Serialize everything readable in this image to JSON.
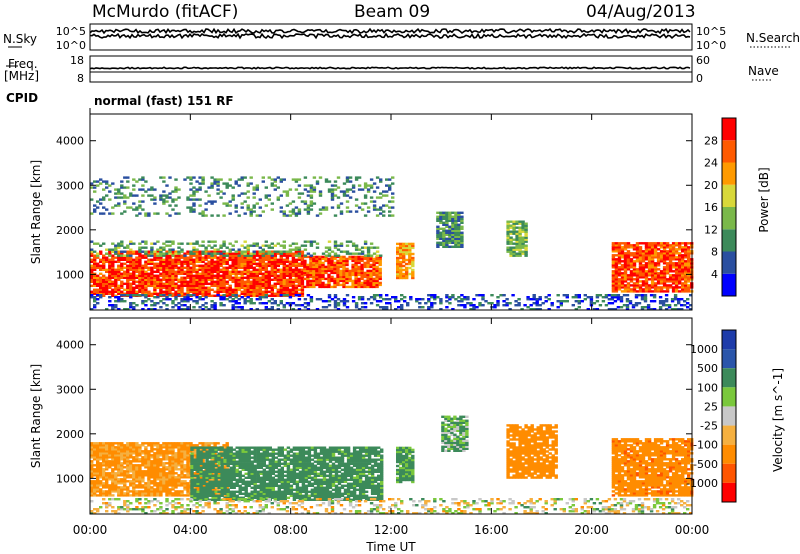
{
  "header": {
    "station": "McMurdo (fitACF)",
    "beam": "Beam 09",
    "date": "04/Aug/2013"
  },
  "params_panel": {
    "nsky_label": "N.Sky",
    "nsearch_label": "N.Search",
    "freq_label_line1": "Freq.",
    "freq_label_line2": "[MHz]",
    "nave_label": "Nave",
    "cpid_label": "CPID",
    "cpid_value": "normal (fast) 151 RF",
    "noise_ticks": [
      "10^5",
      "10^0"
    ],
    "freq_ticks": [
      "18",
      "8"
    ],
    "nave_ticks": [
      "60",
      "0"
    ]
  },
  "colors": {
    "power_scale": [
      "#0000ff",
      "#2a4fa0",
      "#3c8a5a",
      "#7ab84a",
      "#d8d83a",
      "#ff9a00",
      "#ff5a00",
      "#ff0000"
    ],
    "velocity_scale": [
      "#ff0000",
      "#ff5500",
      "#ff8c00",
      "#f5b040",
      "#c8c8c8",
      "#7ac83c",
      "#3c8a5a",
      "#2a55aa",
      "#1e3caa"
    ]
  },
  "chart_data": [
    {
      "type": "heatmap",
      "name": "power",
      "xlabel": "Time UT",
      "ylabel": "Slant Range [km]",
      "x_ticks": [
        "00:00",
        "04:00",
        "08:00",
        "12:00",
        "16:00",
        "20:00",
        "00:00"
      ],
      "x_range_hours": [
        0,
        24
      ],
      "y_ticks": [
        1000,
        2000,
        3000,
        4000
      ],
      "ylim": [
        200,
        4600
      ],
      "colorbar_label": "Power [dB]",
      "colorbar_ticks": [
        4,
        8,
        12,
        16,
        20,
        24,
        28
      ],
      "colorbar_range": [
        0,
        32
      ],
      "regions": [
        {
          "t0": 0.0,
          "t1": 8.5,
          "r0": 500,
          "r1": 1500,
          "level": 28
        },
        {
          "t0": 8.5,
          "t1": 11.6,
          "r0": 700,
          "r1": 1400,
          "level": 26
        },
        {
          "t0": 0.0,
          "t1": 11.6,
          "r0": 1400,
          "r1": 1750,
          "level": 12
        },
        {
          "t0": 12.2,
          "t1": 12.8,
          "r0": 900,
          "r1": 1700,
          "level": 22
        },
        {
          "t0": 13.8,
          "t1": 14.8,
          "r0": 1600,
          "r1": 2400,
          "level": 10
        },
        {
          "t0": 16.6,
          "t1": 17.4,
          "r0": 1400,
          "r1": 2200,
          "level": 14
        },
        {
          "t0": 20.8,
          "t1": 24.0,
          "r0": 600,
          "r1": 1700,
          "level": 27
        },
        {
          "t0": 0.0,
          "t1": 12.0,
          "r0": 2300,
          "r1": 3200,
          "level": 10
        },
        {
          "t0": 0.0,
          "t1": 24.0,
          "r0": 200,
          "r1": 550,
          "level": 6
        }
      ]
    },
    {
      "type": "heatmap",
      "name": "velocity",
      "xlabel": "Time UT",
      "ylabel": "Slant Range [km]",
      "x_ticks": [
        "00:00",
        "04:00",
        "08:00",
        "12:00",
        "16:00",
        "20:00",
        "00:00"
      ],
      "x_range_hours": [
        0,
        24
      ],
      "y_ticks": [
        1000,
        2000,
        3000,
        4000
      ],
      "ylim": [
        200,
        4600
      ],
      "colorbar_label": "Velocity [m s^-1]",
      "colorbar_ticks": [
        "1000",
        "500",
        "100",
        "25",
        "-25",
        "-100",
        "-500",
        "-1000"
      ],
      "regions": [
        {
          "t0": 0.0,
          "t1": 5.5,
          "r0": 600,
          "r1": 1800,
          "velocity": -150
        },
        {
          "t0": 4.0,
          "t1": 11.6,
          "r0": 500,
          "r1": 1700,
          "velocity": 200
        },
        {
          "t0": 12.2,
          "t1": 12.8,
          "r0": 900,
          "r1": 1700,
          "velocity": 150
        },
        {
          "t0": 14.0,
          "t1": 15.0,
          "r0": 1600,
          "r1": 2400,
          "velocity": 100
        },
        {
          "t0": 16.6,
          "t1": 18.6,
          "r0": 1000,
          "r1": 2200,
          "velocity": -300
        },
        {
          "t0": 20.8,
          "t1": 24.0,
          "r0": 600,
          "r1": 1900,
          "velocity": -400
        },
        {
          "t0": 0.0,
          "t1": 24.0,
          "r0": 200,
          "r1": 550,
          "velocity": 0
        }
      ]
    }
  ]
}
